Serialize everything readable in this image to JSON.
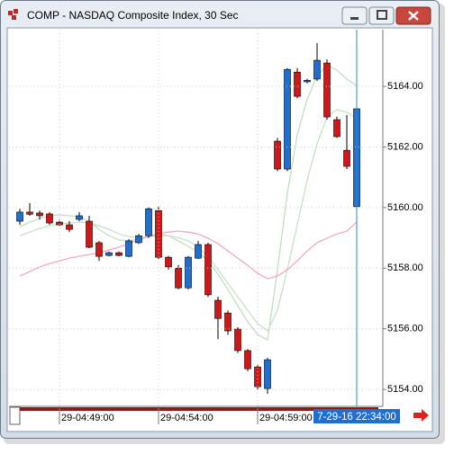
{
  "window": {
    "title": "COMP - NASDAQ Composite Index, 30 Sec"
  },
  "chart_data": {
    "type": "candlestick",
    "categories": [
      null,
      null,
      null,
      null,
      "29-04:49:00",
      null,
      null,
      null,
      null,
      null,
      null,
      null,
      null,
      null,
      "29-04:54:00",
      null,
      null,
      null,
      null,
      null,
      null,
      null,
      null,
      null,
      "29-04:59:00",
      null,
      null,
      null,
      null,
      null,
      null,
      null,
      null,
      null,
      null
    ],
    "open": [
      5159.55,
      5159.85,
      5159.82,
      5159.79,
      5159.52,
      5159.43,
      5159.61,
      5159.55,
      5158.84,
      5158.42,
      5158.51,
      5158.39,
      5158.84,
      5159.07,
      5159.9,
      5158.36,
      5158.0,
      5157.35,
      5158.33,
      5158.78,
      5156.94,
      5156.52,
      5155.99,
      5155.28,
      5154.74,
      5154.03,
      5162.19,
      5161.27,
      5164.47,
      5164.15,
      5164.24,
      5164.77,
      5162.9,
      5161.89,
      5160.03
    ],
    "high": [
      5159.96,
      5160.15,
      5159.9,
      5159.85,
      5159.6,
      5159.55,
      5159.85,
      5159.73,
      5158.9,
      5158.55,
      5158.55,
      5158.96,
      5159.13,
      5160.0,
      5160.02,
      5158.4,
      5158.1,
      5158.4,
      5158.9,
      5158.84,
      5157.06,
      5156.6,
      5156.05,
      5155.33,
      5154.8,
      5155.04,
      5162.3,
      5164.6,
      5164.6,
      5164.25,
      5165.42,
      5164.89,
      5163.0,
      5163.05,
      5163.3
    ],
    "low": [
      5159.43,
      5159.73,
      5159.6,
      5159.43,
      5159.4,
      5159.19,
      5159.55,
      5158.66,
      5158.24,
      5158.39,
      5158.39,
      5158.36,
      5158.8,
      5159.0,
      5158.3,
      5157.95,
      5157.3,
      5157.3,
      5158.3,
      5157.05,
      5155.66,
      5155.8,
      5155.2,
      5154.6,
      5154.0,
      5153.85,
      5161.2,
      5161.2,
      5163.6,
      5164.1,
      5164.18,
      5162.9,
      5162.3,
      5161.27,
      5160.0
    ],
    "close": [
      5159.85,
      5159.78,
      5159.73,
      5159.49,
      5159.43,
      5159.28,
      5159.73,
      5158.69,
      5158.39,
      5158.51,
      5158.42,
      5158.9,
      5159.07,
      5159.96,
      5158.36,
      5158.04,
      5157.35,
      5158.36,
      5158.78,
      5157.12,
      5156.34,
      5155.93,
      5155.28,
      5154.68,
      5154.09,
      5154.98,
      5161.27,
      5164.56,
      5163.67,
      5164.2,
      5164.86,
      5162.99,
      5162.34,
      5161.36,
      5163.26
    ],
    "up_color": "#1f6fd1",
    "down_color": "#d01818",
    "lines": [
      {
        "color": "#bfe0bf",
        "values": [
          5159.37,
          5159.52,
          5159.64,
          5159.73,
          5159.76,
          5159.73,
          5159.7,
          5159.55,
          5159.28,
          5159.07,
          5158.93,
          5158.9,
          5158.96,
          5159.07,
          5159.13,
          5159.07,
          5158.9,
          5158.72,
          5158.54,
          5158.24,
          5157.8,
          5157.29,
          5156.76,
          5156.23,
          5155.81,
          5155.63,
          5157.95,
          5160.47,
          5162.4,
          5163.58,
          5164.33,
          5164.71,
          5164.53,
          5164.24,
          5164.03
        ]
      },
      {
        "color": "#c6e3c6",
        "values": [
          5159.07,
          5159.19,
          5159.31,
          5159.4,
          5159.46,
          5159.49,
          5159.52,
          5159.49,
          5159.4,
          5159.28,
          5159.13,
          5159.04,
          5159.01,
          5159.04,
          5159.07,
          5159.07,
          5159.01,
          5158.9,
          5158.69,
          5158.39,
          5157.95,
          5157.5,
          5157.06,
          5156.61,
          5156.17,
          5155.93,
          5156.61,
          5157.95,
          5159.43,
          5160.91,
          5162.1,
          5162.99,
          5163.23,
          5163.14,
          5162.93
        ]
      },
      {
        "color": "#f4a6c6",
        "values": [
          5157.74,
          5157.89,
          5158.04,
          5158.15,
          5158.24,
          5158.33,
          5158.39,
          5158.45,
          5158.51,
          5158.6,
          5158.69,
          5158.81,
          5158.93,
          5159.04,
          5159.13,
          5159.19,
          5159.22,
          5159.19,
          5159.13,
          5158.99,
          5158.81,
          5158.57,
          5158.33,
          5158.09,
          5157.83,
          5157.65,
          5157.74,
          5157.95,
          5158.24,
          5158.57,
          5158.84,
          5158.99,
          5159.13,
          5159.22,
          5159.52
        ]
      }
    ],
    "ylim": [
      5153.44,
      5165.87
    ],
    "yticks": [
      {
        "value": 5154,
        "label": "5154.00"
      },
      {
        "value": 5156,
        "label": "5156.00"
      },
      {
        "value": 5158,
        "label": "5158.00"
      },
      {
        "value": 5160,
        "label": "5160.00"
      },
      {
        "value": 5162,
        "label": "5162.00"
      },
      {
        "value": 5164,
        "label": "5164.00"
      }
    ],
    "grid": true,
    "cursor_label": "7-29-16 22:34:00"
  }
}
